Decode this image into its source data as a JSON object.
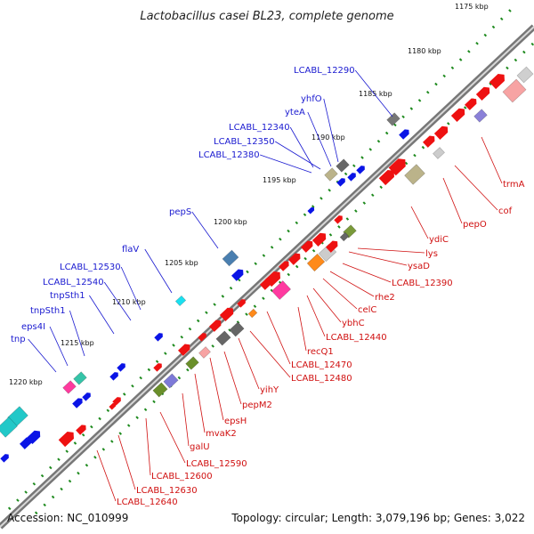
{
  "title": "Lactobacillus casei BL23, complete genome",
  "footer": {
    "accession": "Accession: NC_010999",
    "summary": "Topology: circular; Length: 3,079,196 bp; Genes: 3,022"
  },
  "colors": {
    "forward_label": "#1a1ad0",
    "reverse_label": "#d01010",
    "forward_feature": "#0a14e6",
    "reverse_feature": "#ee1111",
    "tick_dots": "#1e8a1e",
    "backbone": "#888888"
  },
  "ticks": [
    "1175 kbp",
    "1180 kbp",
    "1185 kbp",
    "1190 kbp",
    "1195 kbp",
    "1200 kbp",
    "1205 kbp",
    "1210 kbp",
    "1215 kbp",
    "1220 kbp"
  ],
  "forward_genes": [
    "LCABL_12290",
    "yhfO",
    "yteA",
    "LCABL_12340",
    "LCABL_12350",
    "LCABL_12380",
    "pepS",
    "flaV",
    "LCABL_12530",
    "LCABL_12540",
    "tnpSth1",
    "tnpSth1",
    "eps4I",
    "tnp"
  ],
  "reverse_genes": [
    "trmA",
    "cof",
    "pepO",
    "ydiC",
    "lys",
    "ysaD",
    "LCABL_12390",
    "rhe2",
    "celC",
    "ybhC",
    "LCABL_12440",
    "recQ1",
    "LCABL_12470",
    "LCABL_12480",
    "yihY",
    "pepM2",
    "epsH",
    "mvaK2",
    "galU",
    "LCABL_12590",
    "LCABL_12600",
    "LCABL_12630",
    "LCABL_12640"
  ]
}
